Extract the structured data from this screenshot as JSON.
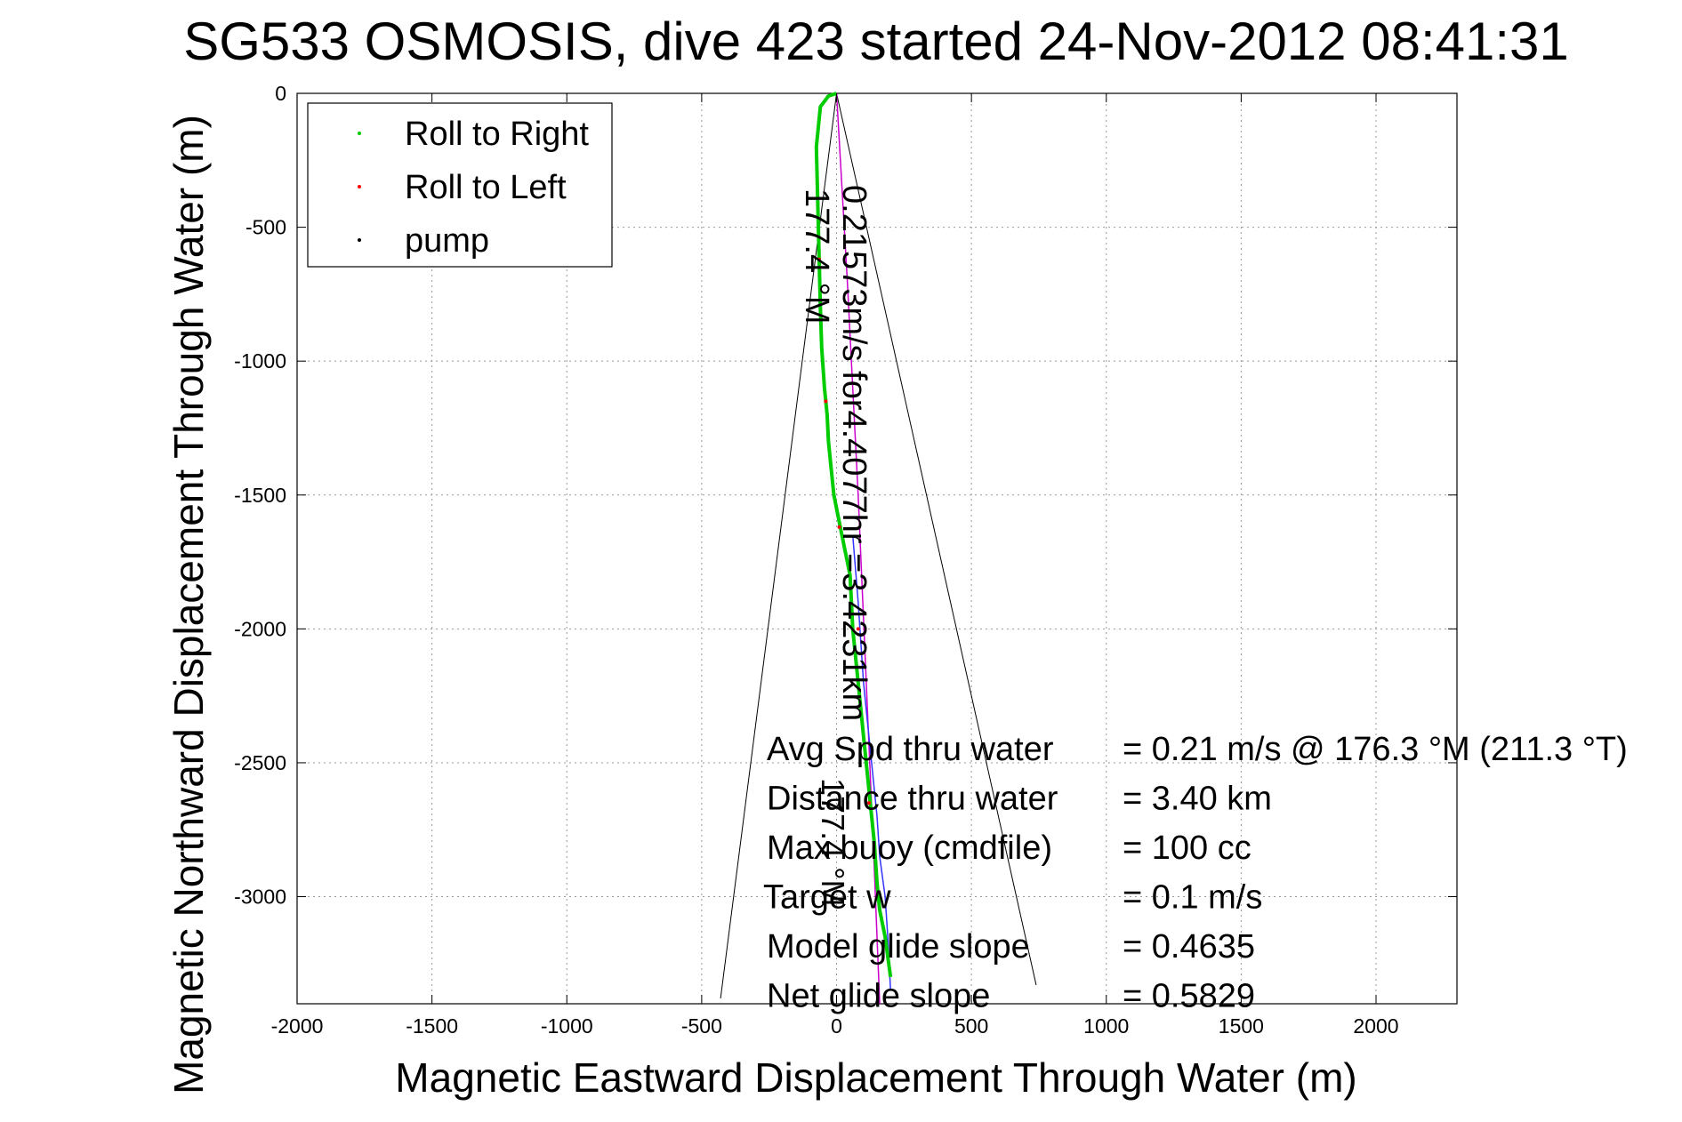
{
  "chart_data": {
    "type": "line",
    "title": "SG533 OSMOSIS, dive 423 started 24-Nov-2012 08:41:31",
    "xlabel": "Magnetic Eastward Displacement Through Water (m)",
    "ylabel": "Magnetic Northward Displacement Through Water (m)",
    "xlim": [
      -2000,
      2300
    ],
    "ylim": [
      -3400,
      0
    ],
    "xticks": [
      -2000,
      -1500,
      -1000,
      -500,
      0,
      500,
      1000,
      1500,
      2000
    ],
    "yticks": [
      0,
      -500,
      -1000,
      -1500,
      -2000,
      -2500,
      -3000
    ],
    "xtick_labels": [
      "-2000",
      "-1500",
      "-1000",
      "-500",
      "0",
      "500",
      "1000",
      "1500",
      "2000"
    ],
    "ytick_labels": [
      "0",
      "-500",
      "-1000",
      "-1500",
      "-2000",
      "-2500",
      "-3000"
    ],
    "grid": true,
    "legend": {
      "placement": "top-left",
      "entries": [
        {
          "label": "Roll to Right",
          "color": "#00cc00"
        },
        {
          "label": "Roll to Left",
          "color": "#ff0000"
        },
        {
          "label": "pump",
          "color": "#000000"
        }
      ]
    },
    "series": [
      {
        "name": "Roll to Right",
        "color": "#00cc00",
        "x": [
          0,
          -30,
          -60,
          -75,
          -70,
          -65,
          -60,
          -55,
          -45,
          -35,
          -30,
          -20,
          -10,
          10,
          30,
          50,
          60,
          80,
          100,
          120,
          140,
          150,
          160,
          180,
          200
        ],
        "y": [
          0,
          -10,
          -50,
          -200,
          -400,
          -600,
          -800,
          -950,
          -1100,
          -1200,
          -1300,
          -1400,
          -1500,
          -1600,
          -1700,
          -1800,
          -2000,
          -2200,
          -2400,
          -2600,
          -2800,
          -2950,
          -3050,
          -3150,
          -3300
        ]
      },
      {
        "name": "",
        "color": "#3333ff",
        "x": [
          60,
          80,
          100,
          130,
          150,
          160,
          180,
          190,
          200
        ],
        "y": [
          -1650,
          -1900,
          -2200,
          -2500,
          -2700,
          -2850,
          -3000,
          -3150,
          -3350
        ]
      },
      {
        "name": "",
        "color": "#cc00cc",
        "x": [
          0,
          40,
          80,
          110,
          140,
          160
        ],
        "y": [
          0,
          -700,
          -1500,
          -2200,
          -2900,
          -3400
        ]
      }
    ],
    "cone_lines": [
      {
        "x": [
          0,
          -430
        ],
        "y": [
          0,
          -3380
        ]
      },
      {
        "x": [
          0,
          740
        ],
        "y": [
          0,
          -3330
        ]
      }
    ],
    "annotations": {
      "vertical_left": "177.4 °M",
      "vertical_right": "0.21573m/s for4.4077hr =3.4231km",
      "vertical_lower": "177.4 °M"
    },
    "stats": [
      {
        "label": "Avg Spd thru water",
        "value": "=  0.21 m/s @ 176.3 °M (211.3 °T)"
      },
      {
        "label": "Distance thru water",
        "value": "=  3.40 km"
      },
      {
        "label": "Max buoy (cmdfile)",
        "value": "= 100 cc"
      },
      {
        "label": "Target w",
        "value": "= 0.1 m/s"
      },
      {
        "label": "Model glide slope",
        "value": "= 0.4635"
      },
      {
        "label": "Net glide slope",
        "value": "= 0.5829"
      }
    ]
  }
}
